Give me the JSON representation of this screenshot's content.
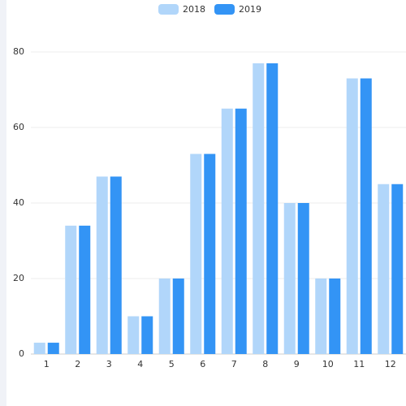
{
  "chart_data": {
    "type": "bar",
    "categories": [
      "1",
      "2",
      "3",
      "4",
      "5",
      "6",
      "7",
      "8",
      "9",
      "10",
      "11",
      "12"
    ],
    "series": [
      {
        "name": "2018",
        "color": "#b1d6fa",
        "values": [
          3,
          34,
          47,
          10,
          20,
          53,
          65,
          77,
          40,
          20,
          73,
          45
        ]
      },
      {
        "name": "2019",
        "color": "#3394f5",
        "values": [
          3,
          34,
          47,
          10,
          20,
          53,
          65,
          77,
          40,
          20,
          73,
          45
        ]
      }
    ],
    "ylim": [
      0,
      80
    ],
    "yticks": [
      0,
      20,
      40,
      60,
      80
    ],
    "grid": true
  }
}
